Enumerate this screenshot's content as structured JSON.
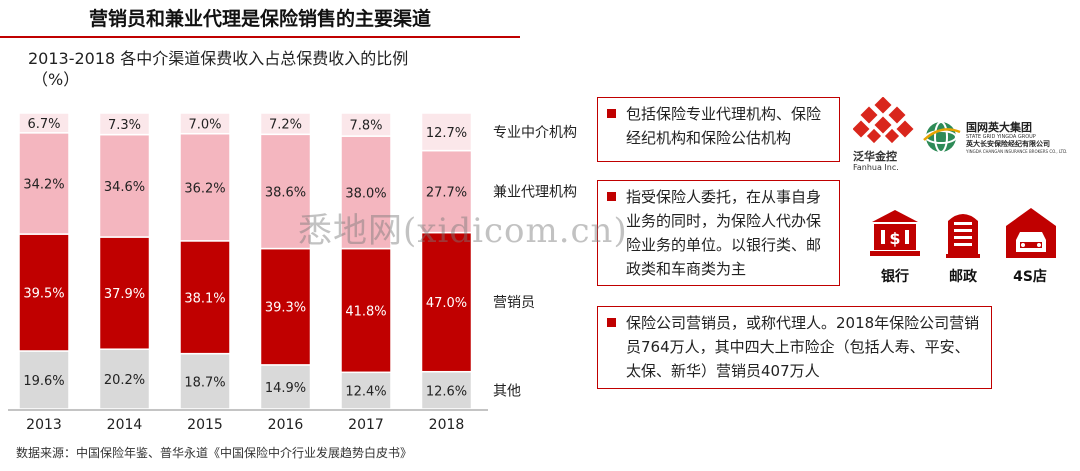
{
  "header": {
    "title": "营销员和兼业代理是保险销售的主要渠道",
    "subtitle_line1": "2013-2018 各中介渠道保费收入占总保费收入的比例",
    "subtitle_line2": "（%）"
  },
  "chart_data": {
    "type": "bar",
    "stacked": true,
    "categories": [
      "2013",
      "2014",
      "2015",
      "2016",
      "2017",
      "2018"
    ],
    "series": [
      {
        "name": "其他",
        "color": "#d9d9d9",
        "values": [
          19.6,
          20.2,
          18.7,
          14.9,
          12.4,
          12.6
        ],
        "labels": [
          "19.6%",
          "20.2%",
          "18.7%",
          "14.9%",
          "12.4%",
          "12.6%"
        ]
      },
      {
        "name": "营销员",
        "color": "#c00000",
        "values": [
          39.5,
          37.9,
          38.1,
          39.3,
          41.8,
          47.0
        ],
        "labels": [
          "39.5%",
          "37.9%",
          "38.1%",
          "39.3%",
          "41.8%",
          "47.0%"
        ]
      },
      {
        "name": "兼业代理机构",
        "color": "#f4b6bf",
        "values": [
          34.2,
          34.6,
          36.2,
          38.6,
          38.0,
          27.7
        ],
        "labels": [
          "34.2%",
          "34.6%",
          "36.2%",
          "38.6%",
          "38.0%",
          "27.7%"
        ]
      },
      {
        "name": "专业中介机构",
        "color": "#fbe7ea",
        "values": [
          6.7,
          7.3,
          7.0,
          7.2,
          7.8,
          12.7
        ],
        "labels": [
          "6.7%",
          "7.3%",
          "7.0%",
          "7.2%",
          "7.8%",
          "12.7%"
        ]
      }
    ],
    "ylim": [
      0,
      100
    ],
    "legend_position": "right"
  },
  "boxes": {
    "box1_text": "包括保险专业代理机构、保险经纪机构和保险公估机构",
    "box2_text": "指受保险人委托，在从事自身业务的同时，为保险人代办保险业务的单位。以银行类、邮政类和车商类为主",
    "box3_text": "保险公司营销员，或称代理人。2018年保险公司营销员764万人，其中四大上市险企（包括人寿、平安、太保、新华）营销员407万人"
  },
  "logos": {
    "fanhua_name": "泛华金控",
    "fanhua_en": "Fanhua Inc.",
    "stategrid_name": "国网英大集团",
    "stategrid_en": "STATE GRID YINGDA GROUP",
    "yingda_name": "英大长安保险经纪有限公司",
    "yingda_en": "YINGDA CHANGAN INSURANCE BROKERS CO., LTD."
  },
  "icons": {
    "bank_label": "银行",
    "post_label": "邮政",
    "car_label": "4S店",
    "bank_glyph": "$"
  },
  "watermark": "悉地网(xidicom.cn)",
  "source": "数据来源：中国保险年鉴、普华永道《中国保险中介行业发展趋势白皮书》",
  "colors": {
    "accent": "#c00000",
    "pink": "#f4b6bf",
    "light_pink": "#fbe7ea",
    "grey": "#d9d9d9"
  }
}
